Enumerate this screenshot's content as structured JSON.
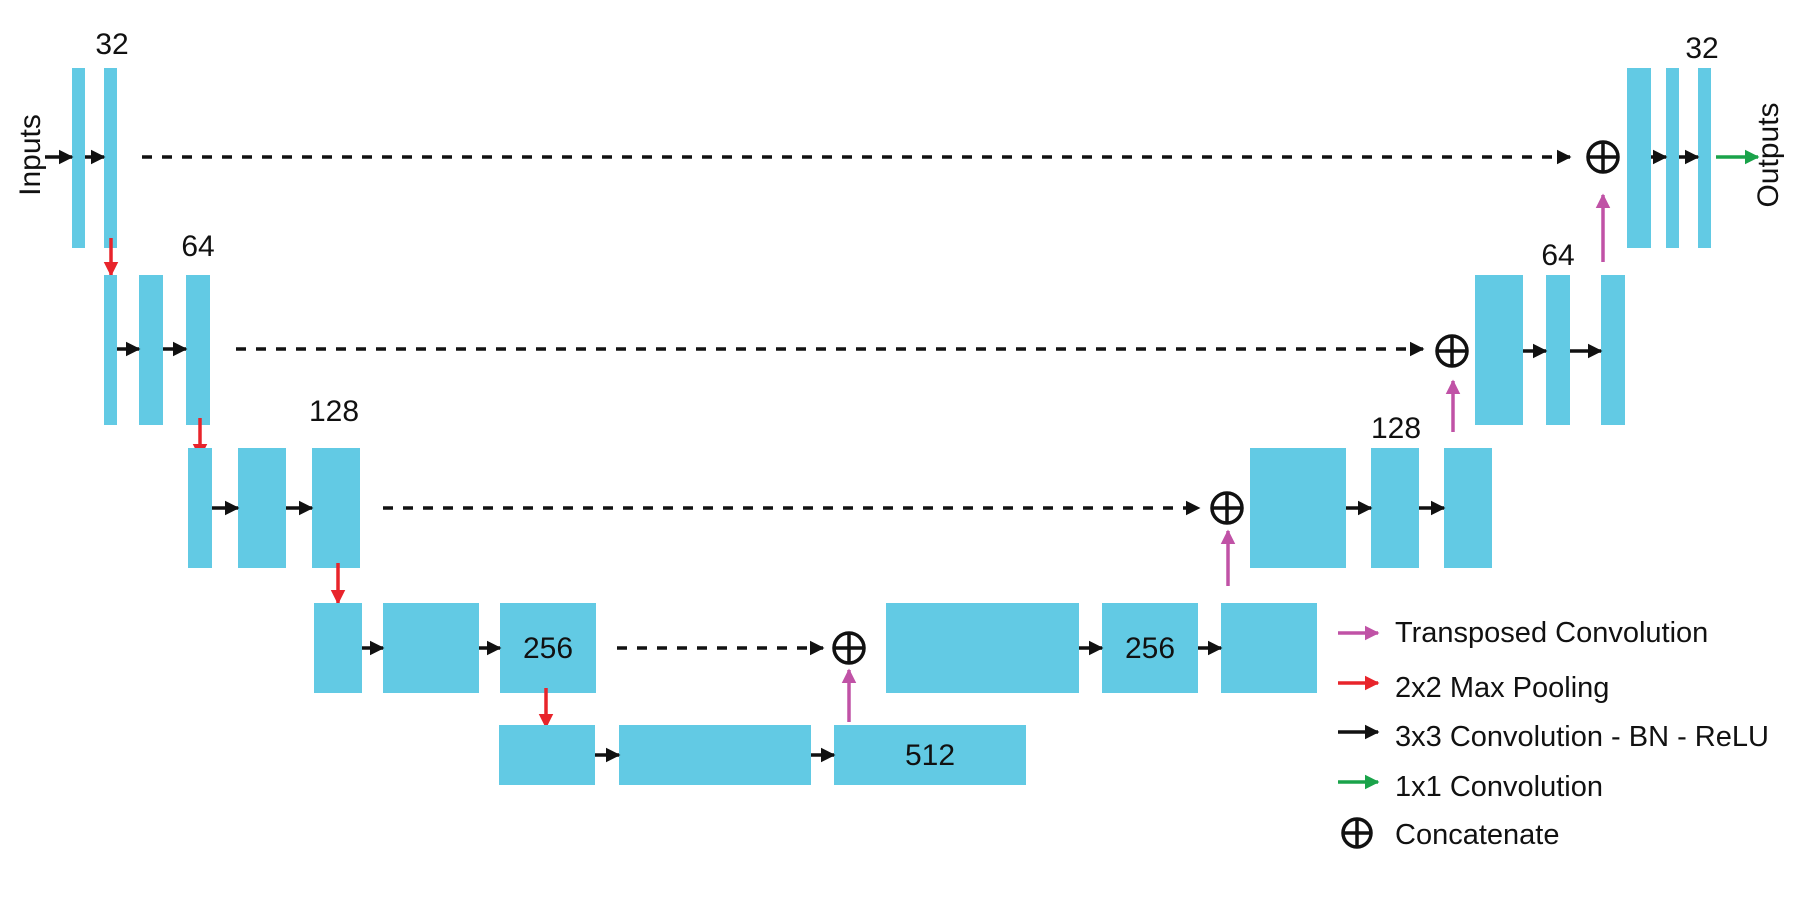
{
  "colors": {
    "block": "#62cae4",
    "conv_arrow": "#111111",
    "pool_arrow": "#e8242b",
    "upconv_arrow": "#c052a6",
    "out_arrow": "#1aa34a",
    "skip_line": "#111111"
  },
  "labels": {
    "inputs": "Inputs",
    "outputs": "Outputs",
    "enc1": "32",
    "enc2": "64",
    "enc3": "128",
    "enc4": "256",
    "bottleneck": "512",
    "dec4": "256",
    "dec3": "128",
    "dec2": "64",
    "dec1": "32"
  },
  "legend": [
    {
      "text": "Transposed Convolution",
      "symbol": "upconv-arrow"
    },
    {
      "text": "2x2 Max Pooling",
      "symbol": "pool-arrow"
    },
    {
      "text": "3x3 Convolution - BN - ReLU",
      "symbol": "conv-arrow"
    },
    {
      "text": "1x1 Convolution",
      "symbol": "out-arrow"
    },
    {
      "text": "Concatenate",
      "symbol": "concat-icon"
    }
  ]
}
